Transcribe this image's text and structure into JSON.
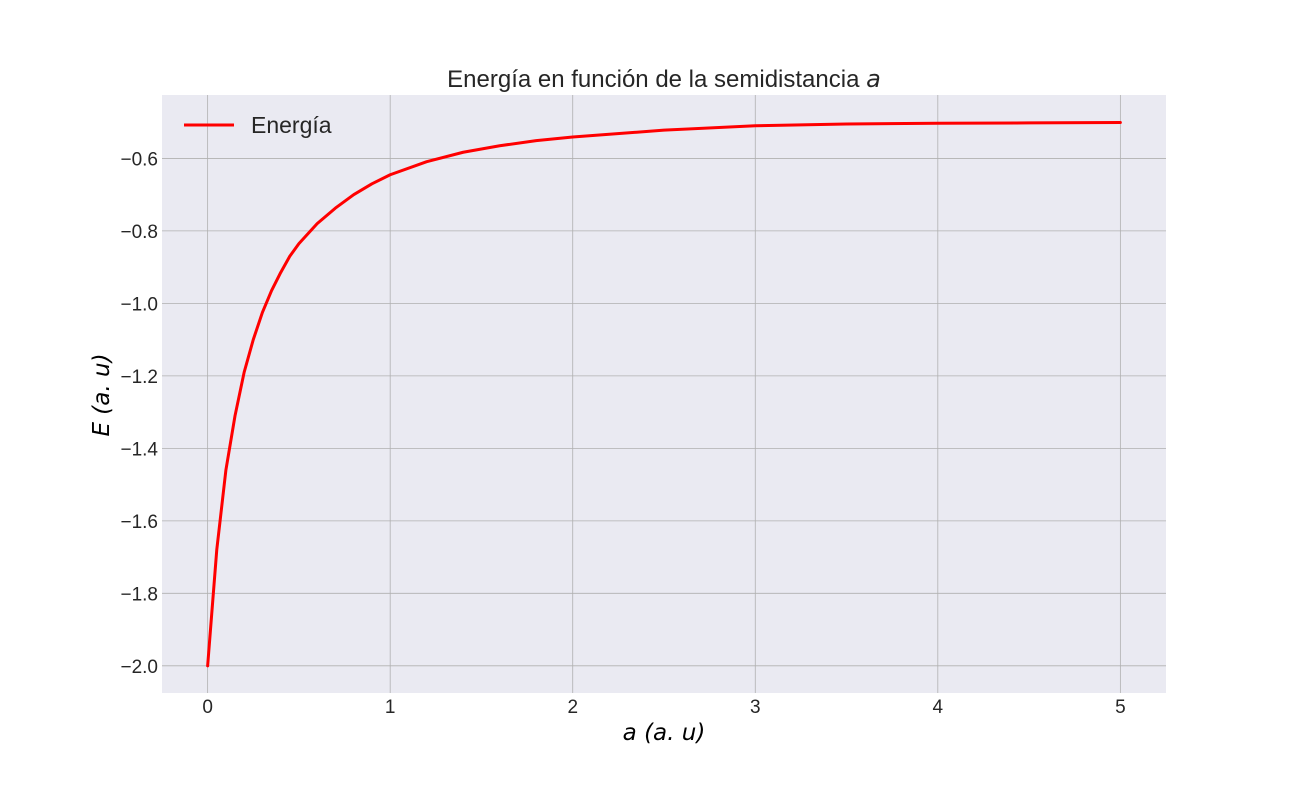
{
  "chart_data": {
    "type": "line",
    "title_text": "Energía en función de la semidistancia ",
    "title_var": "a",
    "xlabel": "a (a. u)",
    "ylabel": "E (a. u)",
    "xlim": [
      -0.25,
      5.25
    ],
    "ylim": [
      -2.075,
      -0.425
    ],
    "xticks": [
      0,
      1,
      2,
      3,
      4,
      5
    ],
    "xtick_labels": [
      "0",
      "1",
      "2",
      "3",
      "4",
      "5"
    ],
    "yticks": [
      -2.0,
      -1.8,
      -1.6,
      -1.4,
      -1.2,
      -1.0,
      -0.8,
      -0.6
    ],
    "ytick_labels": [
      "−2.0",
      "−1.8",
      "−1.6",
      "−1.4",
      "−1.2",
      "−1.0",
      "−0.8",
      "−0.6"
    ],
    "grid": true,
    "legend_position": "top-left",
    "colors": {
      "plot_bg": "#eaeaf2",
      "grid": "#b0b0b0",
      "series": "#ff0000",
      "text": "#262626"
    },
    "series": [
      {
        "name": "Energía",
        "x": [
          0,
          0.05,
          0.1,
          0.15,
          0.2,
          0.25,
          0.3,
          0.35,
          0.4,
          0.45,
          0.5,
          0.6,
          0.7,
          0.8,
          0.9,
          1.0,
          1.2,
          1.4,
          1.6,
          1.8,
          2.0,
          2.5,
          3.0,
          3.5,
          4.0,
          4.5,
          5.0
        ],
        "y": [
          -2.0,
          -1.68,
          -1.46,
          -1.31,
          -1.19,
          -1.1,
          -1.025,
          -0.965,
          -0.915,
          -0.87,
          -0.835,
          -0.78,
          -0.737,
          -0.7,
          -0.67,
          -0.645,
          -0.609,
          -0.583,
          -0.565,
          -0.551,
          -0.541,
          -0.522,
          -0.51,
          -0.505,
          -0.503,
          -0.502,
          -0.501
        ]
      }
    ]
  }
}
